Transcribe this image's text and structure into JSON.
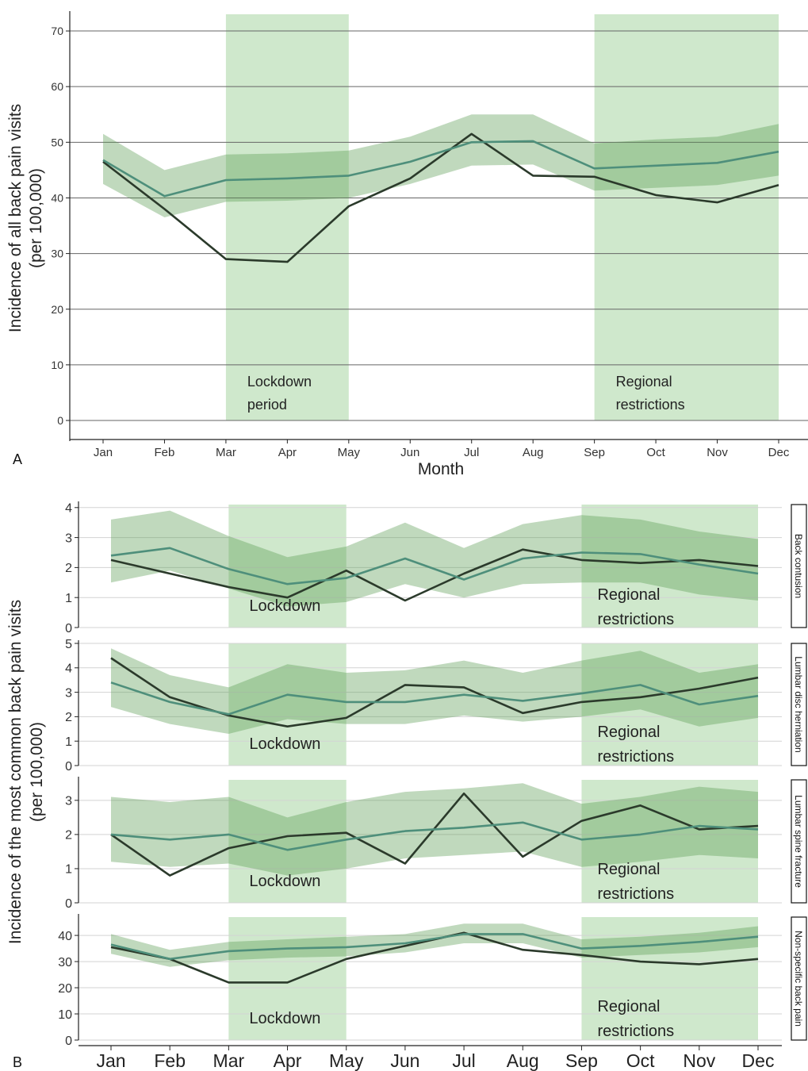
{
  "colors": {
    "observed": "#2b3a2b",
    "expected": "#4e8f7b",
    "band": "#5a9a52",
    "period_shade": "#cfe8cc",
    "grid_major": "#666666",
    "grid_light": "#d3d3d3",
    "axis": "#222222"
  },
  "chart_data": [
    {
      "panel_letter": "A",
      "type": "line",
      "ylabel": [
        "Incidence of all back pain visits",
        "(per 100,000)"
      ],
      "xlabel": "Month",
      "categories": [
        "Jan",
        "Feb",
        "Mar",
        "Apr",
        "May",
        "Jun",
        "Jul",
        "Aug",
        "Sep",
        "Oct",
        "Nov",
        "Dec"
      ],
      "ylim": [
        0,
        73
      ],
      "yticks": [
        0,
        10,
        20,
        30,
        40,
        50,
        60,
        70
      ],
      "grid": true,
      "series": [
        {
          "role": "observed",
          "values": [
            46.5,
            38.0,
            29.0,
            28.5,
            38.5,
            43.5,
            51.5,
            44.0,
            43.8,
            40.5,
            39.2,
            42.3
          ]
        },
        {
          "role": "expected",
          "values": [
            46.8,
            40.3,
            43.2,
            43.5,
            44.0,
            46.5,
            50.0,
            50.2,
            45.3,
            45.8,
            46.3,
            48.3
          ],
          "lower": [
            42.5,
            36.5,
            39.3,
            39.5,
            40.0,
            42.5,
            45.8,
            46.0,
            41.3,
            41.8,
            42.3,
            44.0
          ],
          "upper": [
            51.5,
            45.0,
            47.8,
            48.0,
            48.5,
            51.0,
            55.0,
            55.0,
            49.8,
            50.5,
            51.0,
            53.3
          ]
        }
      ],
      "shaded_periods": [
        {
          "label": [
            "Lockdown",
            "period"
          ],
          "from": "Mar",
          "to": "May"
        },
        {
          "label": [
            "Regional",
            "restrictions"
          ],
          "from": "Sep",
          "to": "Dec"
        }
      ]
    },
    {
      "panel_letter": "B",
      "type": "line",
      "ylabel": [
        "Incidence of the most common back pain visits",
        "(per 100,000)"
      ],
      "categories": [
        "Jan",
        "Feb",
        "Mar",
        "Apr",
        "May",
        "Jun",
        "Jul",
        "Aug",
        "Sep",
        "Oct",
        "Nov",
        "Dec"
      ],
      "shaded_periods": [
        {
          "label": [
            "Lockdown"
          ],
          "from": "Mar",
          "to": "May"
        },
        {
          "label": [
            "Regional",
            "restrictions"
          ],
          "from": "Sep",
          "to": "Dec"
        }
      ],
      "facets": [
        {
          "strip": "Back contusion",
          "ylim": [
            0,
            4.1
          ],
          "yticks": [
            0,
            1,
            2,
            3,
            4
          ],
          "series": [
            {
              "role": "observed",
              "values": [
                2.25,
                1.8,
                1.35,
                1.0,
                1.9,
                0.9,
                1.8,
                2.6,
                2.25,
                2.15,
                2.25,
                2.05
              ]
            },
            {
              "role": "expected",
              "values": [
                2.4,
                2.65,
                1.95,
                1.45,
                1.65,
                2.3,
                1.6,
                2.3,
                2.5,
                2.45,
                2.1,
                1.8
              ],
              "lower": [
                1.5,
                1.9,
                1.3,
                0.7,
                0.85,
                1.45,
                1.0,
                1.45,
                1.5,
                1.5,
                1.1,
                0.9
              ],
              "upper": [
                3.6,
                3.9,
                3.05,
                2.35,
                2.7,
                3.5,
                2.65,
                3.45,
                3.75,
                3.6,
                3.2,
                2.95
              ]
            }
          ]
        },
        {
          "strip": "Lumbar disc herniation",
          "ylim": [
            0,
            5.0
          ],
          "yticks": [
            0,
            1,
            2,
            3,
            4,
            5
          ],
          "series": [
            {
              "role": "observed",
              "values": [
                4.4,
                2.8,
                2.05,
                1.6,
                1.95,
                3.3,
                3.2,
                2.15,
                2.6,
                2.8,
                3.15,
                3.6
              ]
            },
            {
              "role": "expected",
              "values": [
                3.4,
                2.6,
                2.1,
                2.9,
                2.6,
                2.6,
                2.9,
                2.65,
                2.95,
                3.3,
                2.5,
                2.85
              ],
              "lower": [
                2.4,
                1.7,
                1.3,
                1.9,
                1.7,
                1.7,
                2.05,
                1.8,
                2.0,
                2.3,
                1.6,
                1.95
              ],
              "upper": [
                4.8,
                3.7,
                3.2,
                4.15,
                3.8,
                3.9,
                4.3,
                3.8,
                4.3,
                4.7,
                3.8,
                4.15
              ]
            }
          ]
        },
        {
          "strip": "Lumbar spine fracture",
          "ylim": [
            0,
            3.6
          ],
          "yticks": [
            0,
            1,
            2,
            3
          ],
          "series": [
            {
              "role": "observed",
              "values": [
                2.0,
                0.8,
                1.6,
                1.95,
                2.05,
                1.15,
                3.2,
                1.35,
                2.4,
                2.85,
                2.15,
                2.25
              ]
            },
            {
              "role": "expected",
              "values": [
                2.0,
                1.85,
                2.0,
                1.55,
                1.85,
                2.1,
                2.2,
                2.35,
                1.85,
                2.0,
                2.25,
                2.15
              ],
              "lower": [
                1.2,
                1.05,
                1.15,
                0.8,
                1.0,
                1.3,
                1.4,
                1.5,
                1.05,
                1.2,
                1.4,
                1.3
              ],
              "upper": [
                3.1,
                2.95,
                3.1,
                2.5,
                2.95,
                3.25,
                3.35,
                3.5,
                2.9,
                3.1,
                3.4,
                3.25
              ]
            }
          ]
        },
        {
          "strip": "Non-specific back pain",
          "ylim": [
            0,
            47
          ],
          "yticks": [
            0,
            10,
            20,
            30,
            40
          ],
          "series": [
            {
              "role": "observed",
              "values": [
                35.5,
                31.0,
                22.0,
                22.0,
                31.0,
                36.0,
                41.0,
                34.5,
                32.5,
                30.0,
                29.0,
                31.0
              ]
            },
            {
              "role": "expected",
              "values": [
                36.5,
                31.0,
                34.0,
                35.0,
                35.5,
                37.0,
                40.5,
                40.5,
                35.0,
                36.0,
                37.5,
                39.5
              ],
              "lower": [
                33.0,
                28.0,
                30.5,
                31.5,
                32.0,
                33.5,
                37.0,
                37.0,
                31.5,
                32.5,
                33.5,
                35.5
              ],
              "upper": [
                40.5,
                34.5,
                37.5,
                38.5,
                39.5,
                40.5,
                44.5,
                44.5,
                38.5,
                39.5,
                41.0,
                43.5
              ]
            }
          ]
        }
      ]
    }
  ]
}
